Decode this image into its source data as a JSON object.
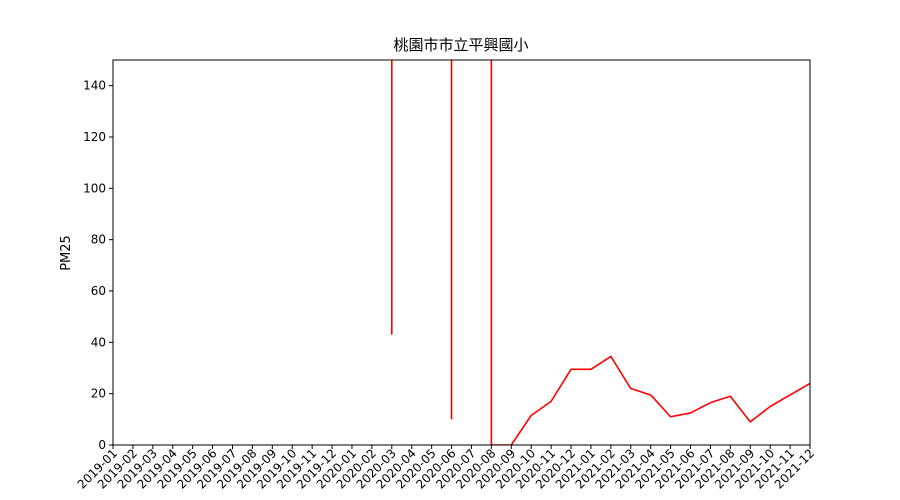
{
  "chart_data": {
    "type": "line",
    "title": "桃園市市立平興國小",
    "xlabel": "",
    "ylabel": "PM25",
    "ylim": [
      0,
      150
    ],
    "yticks": [
      0,
      20,
      40,
      60,
      80,
      100,
      120,
      140
    ],
    "grid": false,
    "line_color": "#ff0000",
    "categories": [
      "2019-01",
      "2019-02",
      "2019-03",
      "2019-04",
      "2019-05",
      "2019-06",
      "2019-07",
      "2019-08",
      "2019-09",
      "2019-10",
      "2019-11",
      "2019-12",
      "2020-01",
      "2020-02",
      "2020-03",
      "2020-04",
      "2020-05",
      "2020-06",
      "2020-07",
      "2020-08",
      "2020-09",
      "2020-10",
      "2020-11",
      "2020-12",
      "2021-01",
      "2021-02",
      "2021-03",
      "2021-04",
      "2021-05",
      "2021-06",
      "2021-07",
      "2021-08",
      "2021-09",
      "2021-10",
      "2021-11",
      "2021-12"
    ],
    "segments": [
      {
        "x": [
          "2020-03",
          "2020-03"
        ],
        "y": [
          43,
          3000
        ]
      },
      {
        "x": [
          "2020-06",
          "2020-06"
        ],
        "y": [
          10,
          3000
        ]
      },
      {
        "x": [
          "2020-08",
          "2020-08",
          "2020-09",
          "2020-10",
          "2020-11",
          "2020-12",
          "2021-01",
          "2021-02",
          "2021-03",
          "2021-04",
          "2021-05",
          "2021-06",
          "2021-07",
          "2021-08",
          "2021-09",
          "2021-10",
          "2021-11",
          "2021-12"
        ],
        "y": [
          3000,
          0,
          0,
          11.5,
          17,
          29.5,
          29.5,
          34.5,
          22,
          19.5,
          11,
          12.5,
          16.5,
          19,
          9,
          15,
          19.5,
          24
        ]
      }
    ]
  }
}
